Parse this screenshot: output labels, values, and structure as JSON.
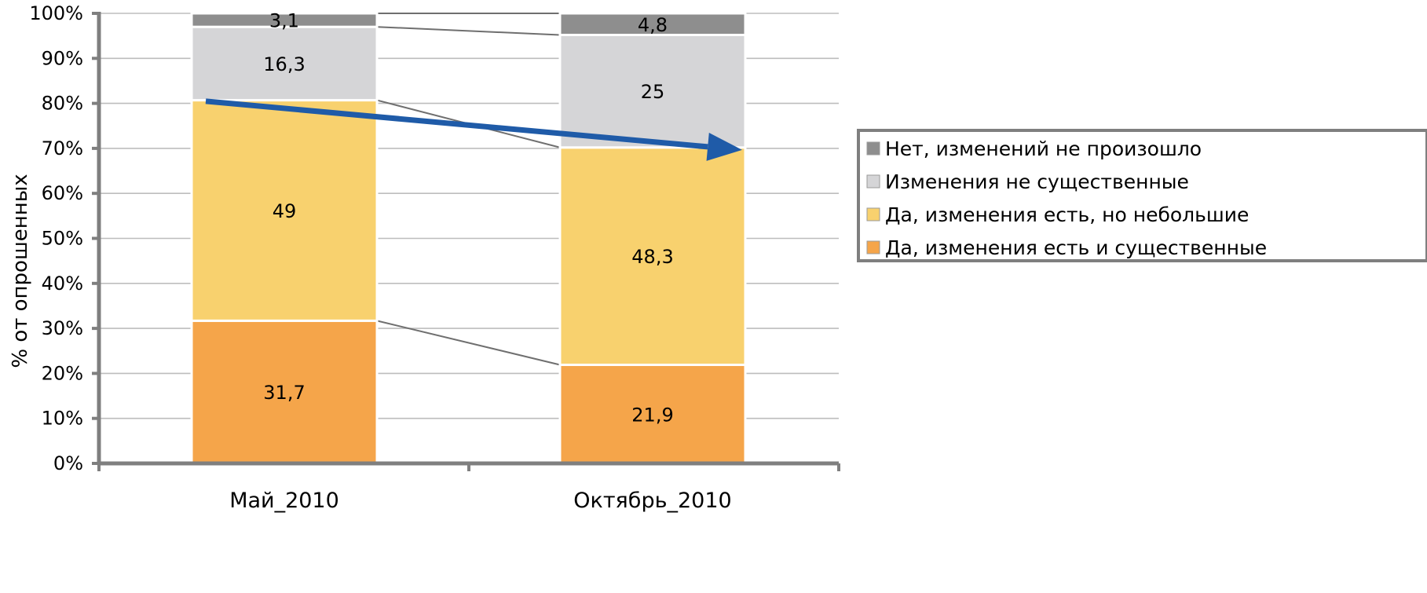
{
  "chart_data": {
    "type": "bar",
    "stacked": true,
    "percent": true,
    "categories": [
      "Май_2010",
      "Октябрь_2010"
    ],
    "series": [
      {
        "name": "Да, изменения есть и существенные",
        "values": [
          31.7,
          21.9
        ],
        "color": "#F5A54A"
      },
      {
        "name": "Да, изменения есть, но небольшие",
        "values": [
          49,
          48.3
        ],
        "color": "#F8D16E"
      },
      {
        "name": "Изменения не существенные",
        "values": [
          16.3,
          25
        ],
        "color": "#D5D5D7"
      },
      {
        "name": "Нет, изменений не произошло",
        "values": [
          3.1,
          4.8
        ],
        "color": "#8E8E8E"
      }
    ],
    "data_labels": [
      [
        "31,7",
        "21,9"
      ],
      [
        "49",
        "48,3"
      ],
      [
        "16,3",
        "25"
      ],
      [
        "3,1",
        "4,8"
      ]
    ],
    "legend_order": [
      3,
      2,
      1,
      0
    ],
    "ylabel": "% от опрошенных",
    "xlabel": "",
    "ylim": [
      0,
      100
    ],
    "yticks": [
      "0%",
      "10%",
      "20%",
      "30%",
      "40%",
      "50%",
      "60%",
      "70%",
      "80%",
      "90%",
      "100%"
    ],
    "grid": true,
    "legend_position": "right",
    "series_lines": true,
    "trend_arrow": {
      "from_value": 81,
      "to_value": 70,
      "color": "#1F5BA8"
    }
  }
}
